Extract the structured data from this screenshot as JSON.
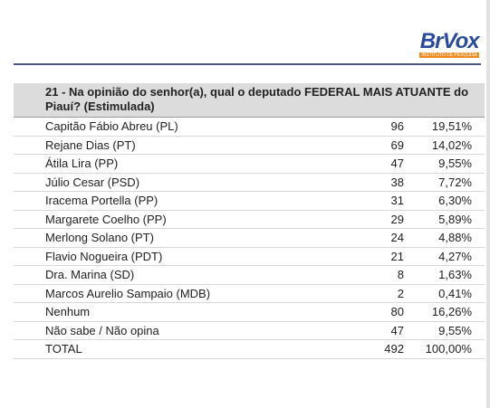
{
  "logo": {
    "name": "BrVox",
    "subtitle": "INSTITUTO DE PESQUISA"
  },
  "table": {
    "question": "21 - Na opinião do senhor(a), qual o deputado FEDERAL MAIS ATUANTE do Piauí? (Estimulada)",
    "rows": [
      [
        "Capitão Fábio Abreu (PL)",
        96,
        "19,51%"
      ],
      [
        "Rejane Dias (PT)",
        69,
        "14,02%"
      ],
      [
        "Átila Lira (PP)",
        47,
        "9,55%"
      ],
      [
        "Júlio Cesar (PSD)",
        38,
        "7,72%"
      ],
      [
        "Iracema Portella (PP)",
        31,
        "6,30%"
      ],
      [
        "Margarete Coelho (PP)",
        29,
        "5,89%"
      ],
      [
        "Merlong Solano (PT)",
        24,
        "4,88%"
      ],
      [
        "Flavio Nogueira (PDT)",
        21,
        "4,27%"
      ],
      [
        "Dra. Marina (SD)",
        8,
        "1,63%"
      ],
      [
        "Marcos Aurelio Sampaio (MDB)",
        2,
        "0,41%"
      ],
      [
        "Nenhum",
        80,
        "16,26%"
      ],
      [
        "Não sabe / Não opina",
        47,
        "9,55%"
      ],
      [
        "TOTAL",
        492,
        "100,00%"
      ]
    ]
  }
}
